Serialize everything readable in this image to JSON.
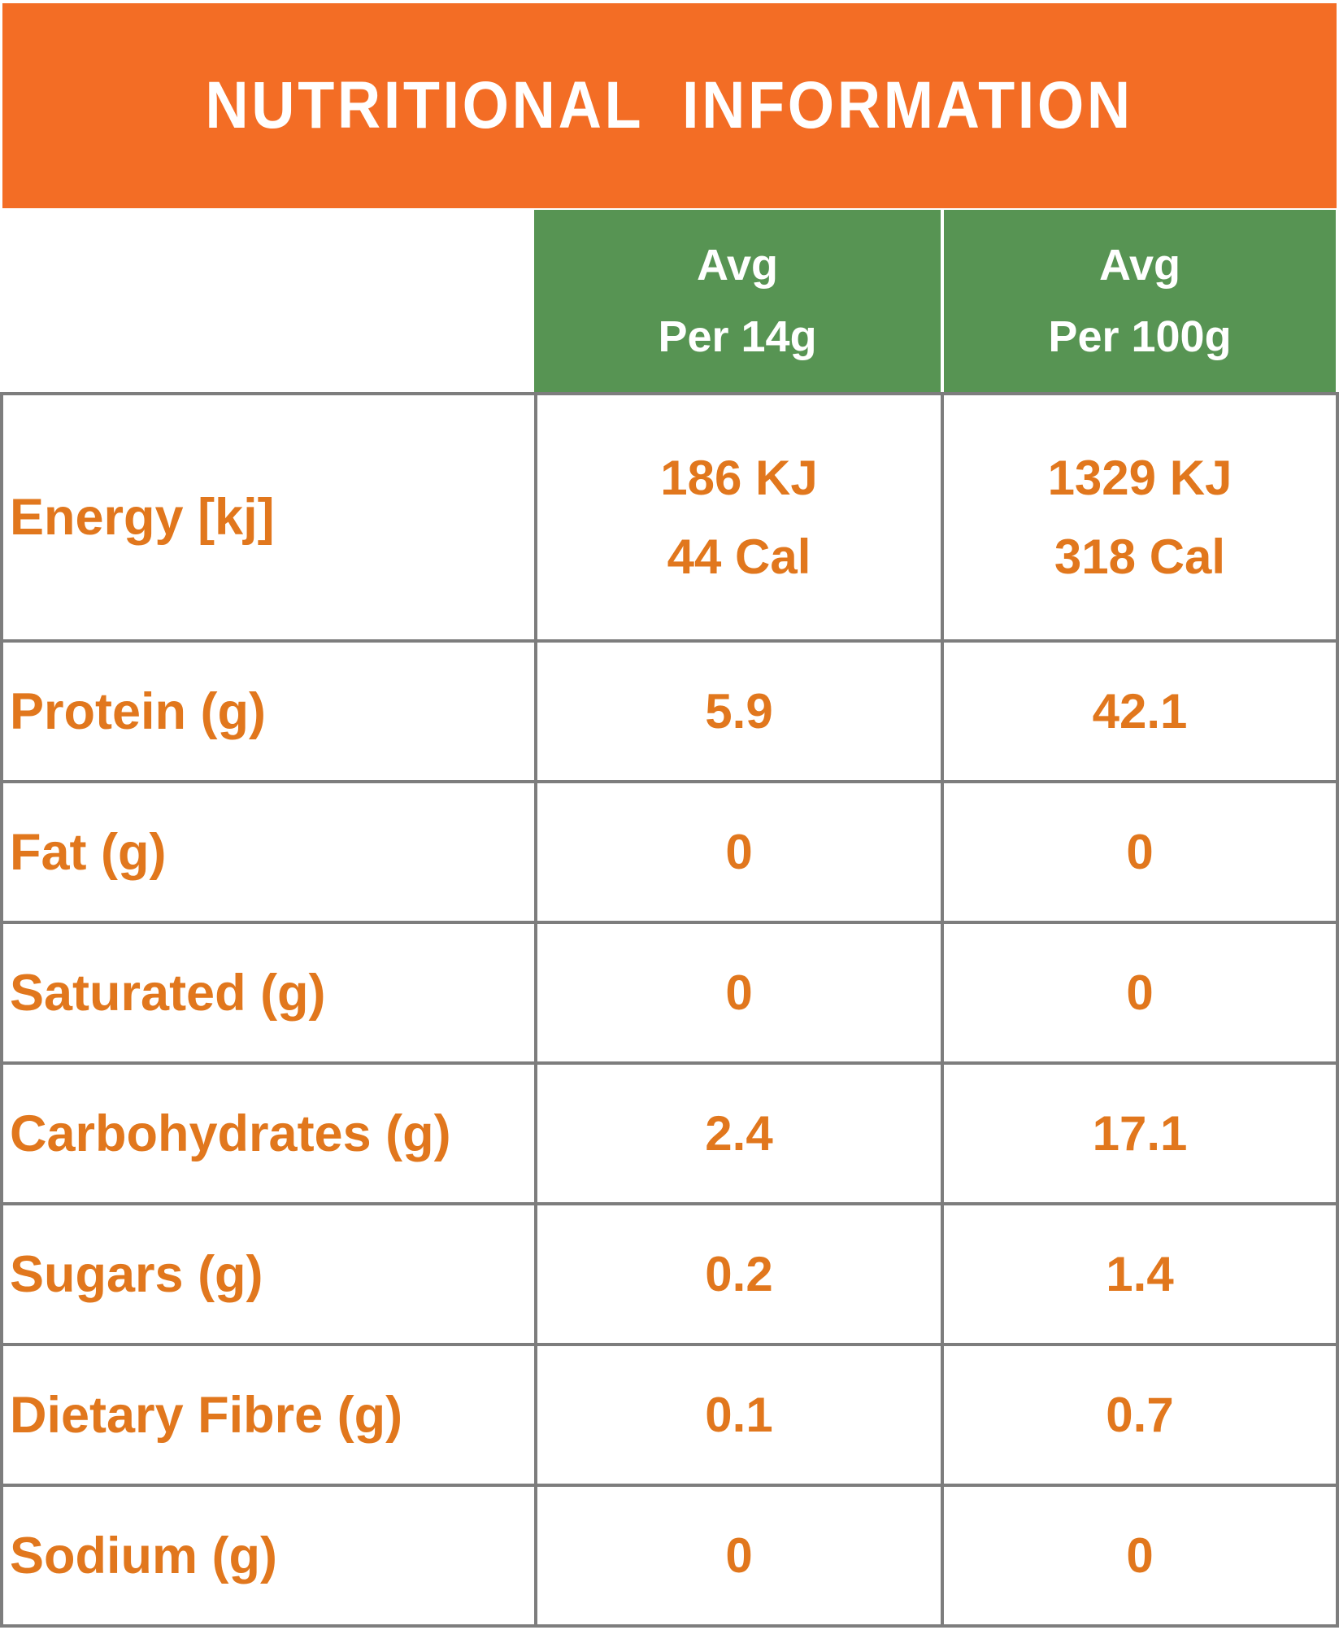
{
  "title": "NUTRITIONAL  INFORMATION",
  "columns": {
    "per_14g": [
      "Avg",
      "Per 14g"
    ],
    "per_100g": [
      "Avg",
      "Per 100g"
    ]
  },
  "rows": [
    {
      "label": "Energy [kj]",
      "per_14g": [
        "186 KJ",
        "44 Cal"
      ],
      "per_100g": [
        "1329 KJ",
        "318 Cal"
      ]
    },
    {
      "label": "Protein (g)",
      "per_14g": [
        "5.9"
      ],
      "per_100g": [
        "42.1"
      ]
    },
    {
      "label": "Fat (g)",
      "per_14g": [
        "0"
      ],
      "per_100g": [
        "0"
      ]
    },
    {
      "label": "Saturated (g)",
      "per_14g": [
        "0"
      ],
      "per_100g": [
        "0"
      ]
    },
    {
      "label": "Carbohydrates (g)",
      "per_14g": [
        "2.4"
      ],
      "per_100g": [
        "17.1"
      ]
    },
    {
      "label": "Sugars (g)",
      "per_14g": [
        "0.2"
      ],
      "per_100g": [
        "1.4"
      ]
    },
    {
      "label": "Dietary Fibre (g)",
      "per_14g": [
        "0.1"
      ],
      "per_100g": [
        "0.7"
      ]
    },
    {
      "label": "Sodium (g)",
      "per_14g": [
        "0"
      ],
      "per_100g": [
        "0"
      ]
    }
  ],
  "colors": {
    "banner_orange": "#F36D25",
    "header_green": "#579453",
    "text_orange": "#E1771D",
    "border_gray": "#7D7D7D"
  }
}
